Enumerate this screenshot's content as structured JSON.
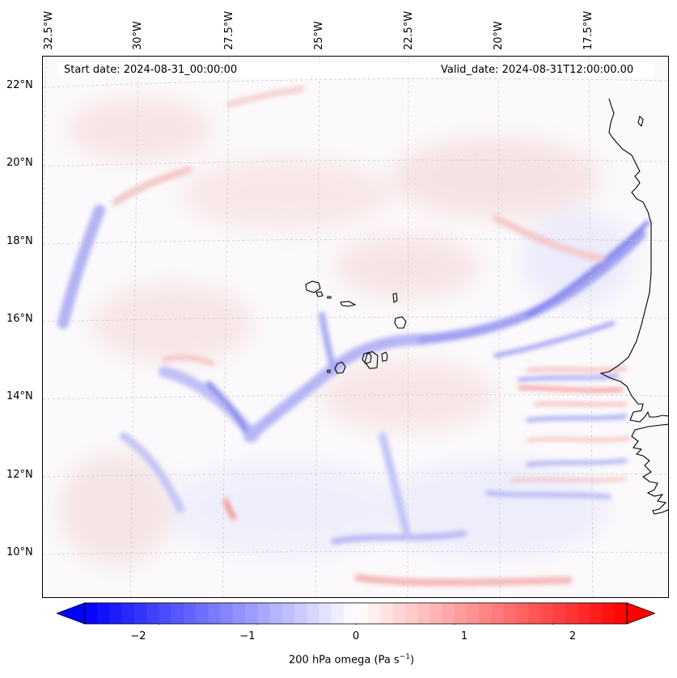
{
  "header": {
    "start_date": "Start date: 2024-08-31_00:00:00",
    "valid_date": "Valid_date: 2024-08-31T12:00:00.00"
  },
  "axes": {
    "lon_labels": [
      "32.5°W",
      "30°W",
      "27.5°W",
      "25°W",
      "22.5°W",
      "20°W",
      "17.5°W"
    ],
    "lat_labels": [
      "22°N",
      "20°N",
      "18°N",
      "16°N",
      "14°N",
      "12°N",
      "10°N"
    ]
  },
  "colorbar": {
    "label": "200 hPa omega (Pa s",
    "label_sup": "−1",
    "label_end": ")",
    "ticks": [
      "−2",
      "−1",
      "0",
      "1",
      "2"
    ],
    "range": [
      -2.75,
      2.75
    ],
    "cmap": "bwr",
    "colors": {
      "min": "#0000ff",
      "mid": "#ffffff",
      "max": "#ff0000"
    }
  },
  "map": {
    "field": "200 hPa omega",
    "grid": true,
    "coastline_color": "#000000"
  }
}
